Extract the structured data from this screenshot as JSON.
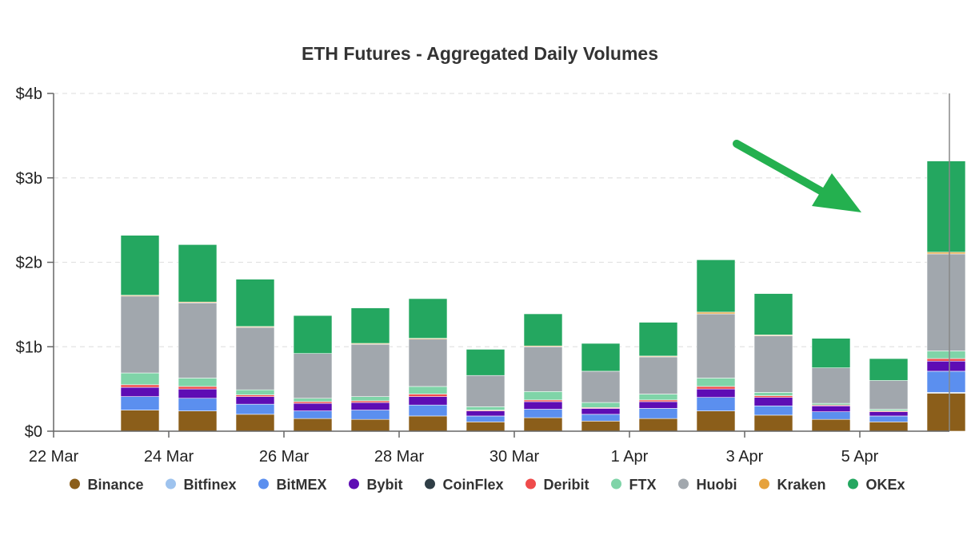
{
  "chart_data": {
    "type": "bar",
    "stacked": true,
    "title": "ETH Futures - Aggregated Daily Volumes",
    "xlabel": "",
    "ylabel": "",
    "ylim": [
      0,
      4
    ],
    "y_ticks": [
      0,
      1,
      2,
      3,
      4
    ],
    "y_tick_labels": [
      "$0",
      "$1b",
      "$2b",
      "$3b",
      "$4b"
    ],
    "x_tick_labels": [
      "22 Mar",
      "24 Mar",
      "26 Mar",
      "28 Mar",
      "30 Mar",
      "1 Apr",
      "3 Apr",
      "5 Apr"
    ],
    "x_tick_days": [
      0,
      2,
      4,
      6,
      8,
      10,
      12,
      14
    ],
    "bar_days": [
      0.5,
      1.5,
      2.5,
      3.5,
      4.5,
      5.5,
      6.5,
      7.5,
      8.5,
      9.5,
      10.5,
      11.5,
      12.5,
      13.5,
      14.5,
      15.5
    ],
    "grid": true,
    "legend_position": "bottom",
    "annotation": "green arrow pointing to the last bar",
    "series": [
      {
        "name": "Binance",
        "color": "#8B5E1A",
        "values": [
          0.0,
          0.25,
          0.24,
          0.2,
          0.15,
          0.14,
          0.18,
          0.11,
          0.16,
          0.12,
          0.15,
          0.24,
          0.19,
          0.14,
          0.11,
          0.45
        ]
      },
      {
        "name": "Bitfinex",
        "color": "#9EC3EE",
        "values": [
          0.0,
          0.0,
          0.0,
          0.0,
          0.0,
          0.0,
          0.0,
          0.0,
          0.0,
          0.0,
          0.0,
          0.0,
          0.0,
          0.0,
          0.0,
          0.01
        ]
      },
      {
        "name": "BitMEX",
        "color": "#5B8FEF",
        "values": [
          0.0,
          0.16,
          0.15,
          0.12,
          0.09,
          0.11,
          0.13,
          0.07,
          0.1,
          0.08,
          0.12,
          0.16,
          0.11,
          0.09,
          0.07,
          0.25
        ]
      },
      {
        "name": "Bybit",
        "color": "#5E0CB4",
        "values": [
          0.0,
          0.11,
          0.11,
          0.09,
          0.09,
          0.09,
          0.1,
          0.06,
          0.09,
          0.07,
          0.08,
          0.1,
          0.1,
          0.07,
          0.05,
          0.12
        ]
      },
      {
        "name": "CoinFlex",
        "color": "#2F3E46",
        "values": [
          0.0,
          0.0,
          0.0,
          0.0,
          0.0,
          0.0,
          0.0,
          0.0,
          0.0,
          0.0,
          0.0,
          0.0,
          0.0,
          0.0,
          0.0,
          0.0
        ]
      },
      {
        "name": "Deribit",
        "color": "#EF4B4B",
        "values": [
          0.0,
          0.03,
          0.03,
          0.02,
          0.02,
          0.02,
          0.03,
          0.01,
          0.02,
          0.01,
          0.02,
          0.03,
          0.02,
          0.01,
          0.01,
          0.03
        ]
      },
      {
        "name": "FTX",
        "color": "#7FD4A8",
        "values": [
          0.0,
          0.14,
          0.1,
          0.06,
          0.04,
          0.05,
          0.09,
          0.04,
          0.1,
          0.06,
          0.07,
          0.1,
          0.04,
          0.02,
          0.02,
          0.09
        ]
      },
      {
        "name": "Huobi",
        "color": "#A1A7AD",
        "values": [
          0.0,
          0.91,
          0.89,
          0.74,
          0.53,
          0.62,
          0.56,
          0.37,
          0.53,
          0.37,
          0.44,
          0.76,
          0.67,
          0.42,
          0.34,
          1.15
        ]
      },
      {
        "name": "Kraken",
        "color": "#E6A23C",
        "values": [
          0.0,
          0.01,
          0.01,
          0.01,
          0.0,
          0.01,
          0.01,
          0.0,
          0.01,
          0.0,
          0.01,
          0.02,
          0.01,
          0.0,
          0.0,
          0.02
        ]
      },
      {
        "name": "OKEx",
        "color": "#24A760",
        "values": [
          0.0,
          0.71,
          0.68,
          0.56,
          0.45,
          0.42,
          0.47,
          0.31,
          0.38,
          0.33,
          0.4,
          0.62,
          0.49,
          0.35,
          0.26,
          1.08
        ]
      }
    ]
  }
}
